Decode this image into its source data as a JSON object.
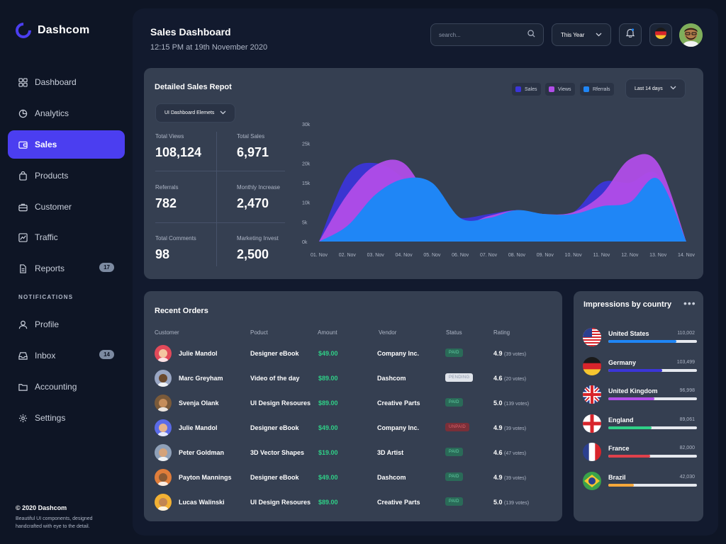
{
  "app": {
    "name": "Dashcom"
  },
  "sidebar": {
    "items": [
      {
        "label": "Dashboard",
        "icon": "grid-icon"
      },
      {
        "label": "Analytics",
        "icon": "pie-chart-icon"
      },
      {
        "label": "Sales",
        "icon": "wallet-icon",
        "active": true
      },
      {
        "label": "Products",
        "icon": "bag-icon"
      },
      {
        "label": "Customer",
        "icon": "briefcase-icon"
      },
      {
        "label": "Traffic",
        "icon": "traffic-chart-icon"
      },
      {
        "label": "Reports",
        "icon": "document-icon",
        "badge": "17"
      }
    ],
    "section_label": "NOTIFICATIONS",
    "notif_items": [
      {
        "label": "Profile",
        "icon": "user-icon"
      },
      {
        "label": "Inbox",
        "icon": "inbox-icon",
        "badge": "14"
      },
      {
        "label": "Accounting",
        "icon": "folder-icon"
      },
      {
        "label": "Settings",
        "icon": "gear-icon"
      }
    ],
    "copyright": "© 2020 Dashcom",
    "copyright_sub": "Beautiful UI components, designed handcrafted with eye to the detail."
  },
  "header": {
    "title": "Sales Dashboard",
    "subtitle": "12:15 PM at 19th November 2020",
    "search_placeholder": "search...",
    "period": "This Year"
  },
  "sales_report": {
    "title": "Detailed Sales Repot",
    "filter": "UI Dashboard Elemets",
    "range": "Last 14 days",
    "stats": [
      {
        "label": "Total Views",
        "value": "108,124"
      },
      {
        "label": "Total Sales",
        "value": "6,971"
      },
      {
        "label": "Referrals",
        "value": "782"
      },
      {
        "label": "Monthly Increase",
        "value": "2,470"
      },
      {
        "label": "Total Comments",
        "value": "98"
      },
      {
        "label": "Marketing Invest",
        "value": "2,500"
      }
    ]
  },
  "chart_data": {
    "type": "area",
    "categories": [
      "01. Nov",
      "02. Nov",
      "03. Nov",
      "04. Nov",
      "05. Nov",
      "06. Nov",
      "07. Nov",
      "08. Nov",
      "09. Nov",
      "10. Nov",
      "11. Nov",
      "12. Nov",
      "13. Nov",
      "14. Nov"
    ],
    "y_ticks": [
      "0k",
      "5k",
      "10k",
      "15k",
      "20k",
      "25k",
      "30k"
    ],
    "ylim": [
      0,
      30000
    ],
    "series": [
      {
        "name": "Sales",
        "color": "#3b35d8",
        "values": [
          0,
          17000,
          20000,
          16000,
          8000,
          6000,
          7000,
          8000,
          7000,
          7500,
          15000,
          15000,
          17000,
          0
        ]
      },
      {
        "name": "Views",
        "color": "#b14de8",
        "values": [
          0,
          12000,
          19500,
          20000,
          10000,
          4500,
          6500,
          8000,
          7000,
          7500,
          12000,
          21000,
          20000,
          0
        ]
      },
      {
        "name": "Rferrals",
        "color": "#1f86f6",
        "values": [
          0,
          4000,
          12000,
          16000,
          15000,
          6000,
          6000,
          8000,
          7000,
          7000,
          9000,
          10000,
          16000,
          0
        ]
      }
    ]
  },
  "orders": {
    "title": "Recent Orders",
    "columns": [
      "Customer",
      "Poduct",
      "Amount",
      "Vendor",
      "Status",
      "Rating"
    ],
    "rows": [
      {
        "customer": "Julie Mandol",
        "product": "Designer eBook",
        "amount": "$49.00",
        "vendor": "Company Inc.",
        "status": "PAID",
        "rating": "4.9",
        "votes": "(39 votes)"
      },
      {
        "customer": "Marc Greyham",
        "product": "Video of the day",
        "amount": "$89.00",
        "vendor": "Dashcom",
        "status": "PENDING",
        "rating": "4.6",
        "votes": "(20 votes)"
      },
      {
        "customer": "Svenja Olank",
        "product": "UI Design Resoures",
        "amount": "$89.00",
        "vendor": "Creative Parts",
        "status": "PAID",
        "rating": "5.0",
        "votes": "(139 votes)"
      },
      {
        "customer": "Julie Mandol",
        "product": "Designer eBook",
        "amount": "$49.00",
        "vendor": "Company Inc.",
        "status": "UNPAID",
        "rating": "4.9",
        "votes": "(39 votes)"
      },
      {
        "customer": "Peter Goldman",
        "product": "3D Vector Shapes",
        "amount": "$19.00",
        "vendor": "3D Artist",
        "status": "PAID",
        "rating": "4.6",
        "votes": "(47 votes)"
      },
      {
        "customer": "Payton Mannings",
        "product": "Designer eBook",
        "amount": "$49.00",
        "vendor": "Dashcom",
        "status": "PAID",
        "rating": "4.9",
        "votes": "(39 votes)"
      },
      {
        "customer": "Lucas Walinski",
        "product": "UI Design Resoures",
        "amount": "$89.00",
        "vendor": "Creative Parts",
        "status": "PAID",
        "rating": "5.0",
        "votes": "(139 votes)"
      }
    ]
  },
  "impressions": {
    "title": "Impressions by country",
    "countries": [
      {
        "name": "United States",
        "value": "110,002",
        "fraction": 0.77,
        "color": "#1f86f6"
      },
      {
        "name": "Germany",
        "value": "103,499",
        "fraction": 0.61,
        "color": "#3b35d8"
      },
      {
        "name": "United Kingdom",
        "value": "96,998",
        "fraction": 0.52,
        "color": "#b14de8"
      },
      {
        "name": "England",
        "value": "89,061",
        "fraction": 0.49,
        "color": "#2fd087"
      },
      {
        "name": "France",
        "value": "82,000",
        "fraction": 0.47,
        "color": "#e0414b"
      },
      {
        "name": "Brazil",
        "value": "42,030",
        "fraction": 0.29,
        "color": "#f5a73b"
      }
    ]
  }
}
